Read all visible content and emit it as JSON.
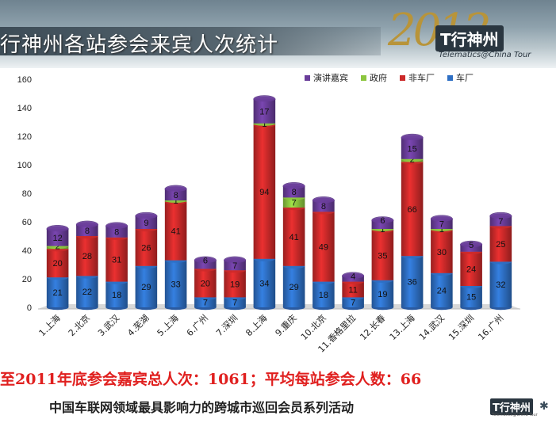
{
  "header": {
    "title": "行神州各站参会来宾人次统计",
    "logo": {
      "year": "2012",
      "name": "T行神州",
      "subtitle": "Telematics@China Tour"
    }
  },
  "chart_data": {
    "type": "bar",
    "stacked": true,
    "categories": [
      "1.上海",
      "2.北京",
      "3.武汉",
      "4.芜湖",
      "5.上海",
      "6.广州",
      "7.深圳",
      "8.上海",
      "9.重庆",
      "10.北京",
      "11.香格里拉",
      "12.长春",
      "13.上海",
      "14.武汉",
      "15.深圳",
      "16.广州"
    ],
    "series": [
      {
        "name": "车厂",
        "color": "#2e6fc4",
        "values": [
          21,
          22,
          18,
          29,
          33,
          7,
          7,
          34,
          29,
          18,
          7,
          19,
          36,
          24,
          15,
          32
        ]
      },
      {
        "name": "非车厂",
        "color": "#cc2a2a",
        "values": [
          20,
          28,
          31,
          26,
          41,
          20,
          19,
          94,
          41,
          49,
          11,
          35,
          66,
          30,
          24,
          25
        ]
      },
      {
        "name": "政府",
        "color": "#8cc63f",
        "values": [
          2,
          null,
          null,
          null,
          1,
          null,
          null,
          1,
          7,
          null,
          null,
          1,
          2,
          1,
          null,
          null
        ]
      },
      {
        "name": "演讲嘉宾",
        "color": "#6a3d9a",
        "values": [
          12,
          8,
          8,
          9,
          8,
          6,
          7,
          17,
          8,
          8,
          4,
          6,
          15,
          7,
          5,
          7
        ]
      }
    ],
    "legend_order": [
      "演讲嘉宾",
      "政府",
      "非车厂",
      "车厂"
    ],
    "legend_position": "top-right",
    "ylim": [
      0,
      160
    ],
    "yticks": [
      0,
      20,
      40,
      60,
      80,
      100,
      120,
      140,
      160
    ],
    "grid": false,
    "title": "",
    "xlabel": "",
    "ylabel": ""
  },
  "footer": {
    "summary": "至2011年底参会嘉宾总人次：1061；平均每站参会人数：66",
    "tagline": "中国车联网领域最具影响力的跨城市巡回会员系列活动",
    "logo": {
      "name": "T行神州",
      "subtitle": "Telematics@China Tour"
    }
  }
}
